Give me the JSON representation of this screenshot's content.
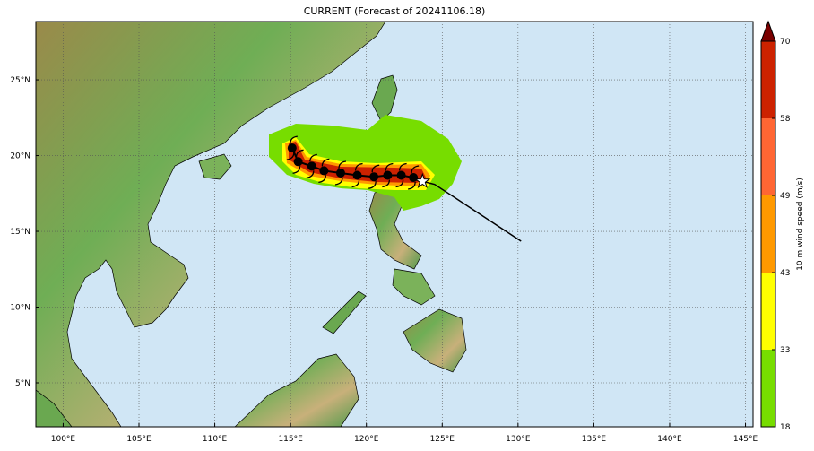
{
  "title": "CURRENT (Forecast of 20241106.18)",
  "map": {
    "lon_range": [
      98.2,
      145.5
    ],
    "lat_range": [
      2.1,
      28.85
    ],
    "ocean_color": "#d0e6f5",
    "gridlines": "dotted",
    "lon_ticks": [
      {
        "value": 100,
        "label": "100°E"
      },
      {
        "value": 105,
        "label": "105°E"
      },
      {
        "value": 110,
        "label": "110°E"
      },
      {
        "value": 115,
        "label": "115°E"
      },
      {
        "value": 120,
        "label": "120°E"
      },
      {
        "value": 125,
        "label": "125°E"
      },
      {
        "value": 130,
        "label": "130°E"
      },
      {
        "value": 135,
        "label": "135°E"
      },
      {
        "value": 140,
        "label": "140°E"
      },
      {
        "value": 145,
        "label": "145°E"
      }
    ],
    "lat_ticks": [
      {
        "value": 5,
        "label": "5°N"
      },
      {
        "value": 10,
        "label": "10°N"
      },
      {
        "value": 15,
        "label": "15°N"
      },
      {
        "value": 20,
        "label": "20°N"
      },
      {
        "value": 25,
        "label": "25°N"
      }
    ]
  },
  "track": {
    "past_track": [
      [
        130.2,
        14.35
      ],
      [
        124.5,
        18.1
      ],
      [
        123.7,
        18.3
      ]
    ],
    "current_position": {
      "lon": 123.7,
      "lat": 18.3,
      "icon": "star-icon"
    },
    "forecast_positions": [
      [
        123.1,
        18.55
      ],
      [
        122.3,
        18.7
      ],
      [
        121.4,
        18.7
      ],
      [
        120.5,
        18.6
      ],
      [
        119.4,
        18.7
      ],
      [
        118.3,
        18.85
      ],
      [
        117.2,
        19.0
      ],
      [
        116.4,
        19.3
      ],
      [
        115.5,
        19.6
      ],
      [
        115.1,
        20.5
      ]
    ],
    "forecast_icon": "typhoon-symbol-icon"
  },
  "colorbar": {
    "label": "10 m wind speed (m/s)",
    "levels": [
      18,
      33,
      43,
      49,
      58,
      70
    ],
    "colors": [
      "#77dd00",
      "#ffff00",
      "#ff9900",
      "#ff6633",
      "#cc2200"
    ],
    "extend_color": "#7a0000"
  }
}
